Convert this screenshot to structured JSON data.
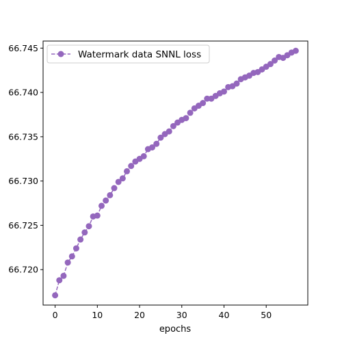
{
  "chart_data": {
    "type": "line",
    "title": "",
    "xlabel": "epochs",
    "ylabel": "",
    "xlim": [
      -2.85,
      59.85
    ],
    "ylim": [
      66.716,
      66.7458
    ],
    "xticks": [
      0,
      10,
      20,
      30,
      40,
      50
    ],
    "xtick_labels": [
      "0",
      "10",
      "20",
      "30",
      "40",
      "50"
    ],
    "yticks": [
      66.72,
      66.725,
      66.73,
      66.735,
      66.74,
      66.745
    ],
    "ytick_labels": [
      "66.720",
      "66.725",
      "66.730",
      "66.735",
      "66.740",
      "66.745"
    ],
    "grid": false,
    "legend_position": "top-left",
    "series": [
      {
        "name": "Watermark data SNNL loss",
        "color": "#9467bd",
        "line_style": "dashed",
        "marker": "circle",
        "x": [
          0,
          1,
          2,
          3,
          4,
          5,
          6,
          7,
          8,
          9,
          10,
          11,
          12,
          13,
          14,
          15,
          16,
          17,
          18,
          19,
          20,
          21,
          22,
          23,
          24,
          25,
          26,
          27,
          28,
          29,
          30,
          31,
          32,
          33,
          34,
          35,
          36,
          37,
          38,
          39,
          40,
          41,
          42,
          43,
          44,
          45,
          46,
          47,
          48,
          49,
          50,
          51,
          52,
          53,
          54,
          55,
          56,
          57
        ],
        "y": [
          66.7171,
          66.7188,
          66.7193,
          66.7208,
          66.7215,
          66.7224,
          66.7234,
          66.7242,
          66.7249,
          66.726,
          66.7261,
          66.7272,
          66.7278,
          66.7284,
          66.7292,
          66.7299,
          66.7303,
          66.7311,
          66.7317,
          66.7322,
          66.7325,
          66.7328,
          66.7336,
          66.7338,
          66.7342,
          66.7349,
          66.7353,
          66.7356,
          66.7362,
          66.7366,
          66.7369,
          66.7371,
          66.7377,
          66.7382,
          66.7385,
          66.7388,
          66.7393,
          66.7393,
          66.7396,
          66.7399,
          66.7401,
          66.7406,
          66.7407,
          66.741,
          66.7415,
          66.7417,
          66.7419,
          66.7422,
          66.7423,
          66.7426,
          66.7429,
          66.7432,
          66.7436,
          66.744,
          66.7439,
          66.7442,
          66.7445,
          66.7447
        ]
      }
    ]
  }
}
